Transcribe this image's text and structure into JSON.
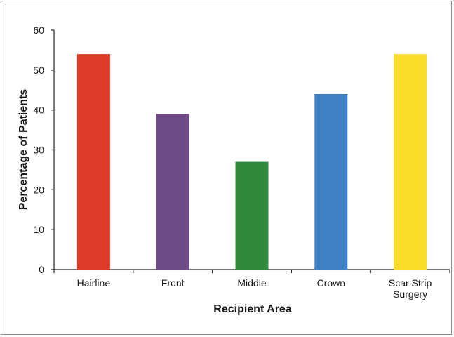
{
  "chart_data": {
    "type": "bar",
    "title": "",
    "xlabel": "Recipient Area",
    "ylabel": "Percentage of Patients",
    "categories": [
      "Hairline",
      "Front",
      "Middle",
      "Crown",
      "Scar Strip Surgery"
    ],
    "category_lines": [
      [
        "Hairline"
      ],
      [
        "Front"
      ],
      [
        "Middle"
      ],
      [
        "Crown"
      ],
      [
        "Scar Strip",
        "Surgery"
      ]
    ],
    "values": [
      54,
      39,
      27,
      44,
      54
    ],
    "colors": [
      "#e03a2a",
      "#6e4a86",
      "#2f8a3c",
      "#3f80c4",
      "#f7dc2a"
    ],
    "ylim": [
      0,
      60
    ],
    "yticks": [
      0,
      10,
      20,
      30,
      40,
      50,
      60
    ],
    "grid": false,
    "legend": "none"
  }
}
